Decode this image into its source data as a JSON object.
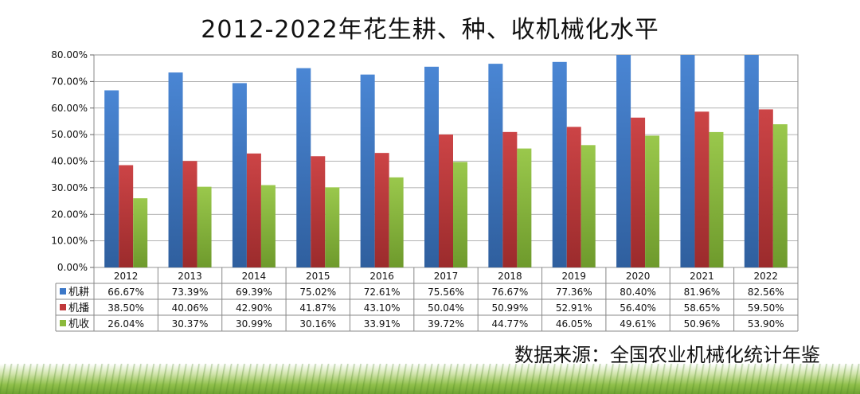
{
  "chart_data": {
    "type": "bar",
    "title": "2012-2022年花生耕、种、收机械化水平",
    "ylim": [
      0,
      80
    ],
    "y_ticks": [
      "0.00%",
      "10.00%",
      "20.00%",
      "30.00%",
      "40.00%",
      "50.00%",
      "60.00%",
      "70.00%",
      "80.00%"
    ],
    "categories": [
      "2012",
      "2013",
      "2014",
      "2015",
      "2016",
      "2017",
      "2018",
      "2019",
      "2020",
      "2021",
      "2022"
    ],
    "series": [
      {
        "name": "机耕",
        "color": "#3c78c8",
        "values": [
          66.67,
          73.39,
          69.39,
          75.02,
          72.61,
          75.56,
          76.67,
          77.36,
          80.4,
          81.96,
          82.56
        ],
        "labels": [
          "66.67%",
          "73.39%",
          "69.39%",
          "75.02%",
          "72.61%",
          "75.56%",
          "76.67%",
          "77.36%",
          "80.40%",
          "81.96%",
          "82.56%"
        ]
      },
      {
        "name": "机播",
        "color": "#c0383a",
        "values": [
          38.5,
          40.06,
          42.9,
          41.87,
          43.1,
          50.04,
          50.99,
          52.91,
          56.4,
          58.65,
          59.5
        ],
        "labels": [
          "38.50%",
          "40.06%",
          "42.90%",
          "41.87%",
          "43.10%",
          "50.04%",
          "50.99%",
          "52.91%",
          "56.40%",
          "58.65%",
          "59.50%"
        ]
      },
      {
        "name": "机收",
        "color": "#8cba3c",
        "values": [
          26.04,
          30.37,
          30.99,
          30.16,
          33.91,
          39.72,
          44.77,
          46.05,
          49.61,
          50.96,
          53.9
        ],
        "labels": [
          "26.04%",
          "30.37%",
          "30.99%",
          "30.16%",
          "33.91%",
          "39.72%",
          "44.77%",
          "46.05%",
          "49.61%",
          "50.96%",
          "53.90%"
        ]
      }
    ],
    "grid": true,
    "legend": "data-table-left"
  },
  "source_note": "数据来源：全国农业机械化统计年鉴"
}
